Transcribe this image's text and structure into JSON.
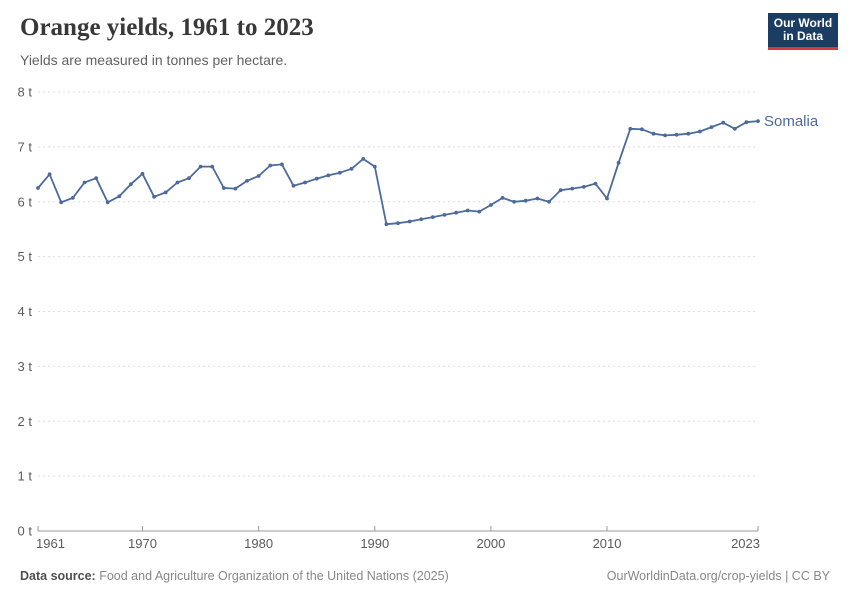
{
  "header": {
    "title": "Orange yields, 1961 to 2023",
    "subtitle": "Yields are measured in tonnes per hectare.",
    "logo": {
      "line1": "Our World",
      "line2": "in Data"
    }
  },
  "chart_data": {
    "type": "line",
    "title": "Orange yields, 1961 to 2023",
    "ylabel": "tonnes per hectare",
    "xlabel": "",
    "xlim": [
      1961,
      2023
    ],
    "ylim": [
      0,
      8
    ],
    "grid": "horizontal-dashed",
    "legend_position": "end-of-line-label",
    "x": [
      1961,
      1962,
      1963,
      1964,
      1965,
      1966,
      1967,
      1968,
      1969,
      1970,
      1971,
      1972,
      1973,
      1974,
      1975,
      1976,
      1977,
      1978,
      1979,
      1980,
      1981,
      1982,
      1983,
      1984,
      1985,
      1986,
      1987,
      1988,
      1989,
      1990,
      1991,
      1992,
      1993,
      1994,
      1995,
      1996,
      1997,
      1998,
      1999,
      2000,
      2001,
      2002,
      2003,
      2004,
      2005,
      2006,
      2007,
      2008,
      2009,
      2010,
      2011,
      2012,
      2013,
      2014,
      2015,
      2016,
      2017,
      2018,
      2019,
      2020,
      2021,
      2022,
      2023
    ],
    "series": [
      {
        "name": "Somalia",
        "color": "#4C6A9C",
        "values": [
          6.25,
          6.5,
          5.99,
          6.07,
          6.35,
          6.43,
          5.99,
          6.1,
          6.32,
          6.51,
          6.09,
          6.17,
          6.35,
          6.43,
          6.64,
          6.64,
          6.25,
          6.24,
          6.38,
          6.47,
          6.66,
          6.68,
          6.29,
          6.35,
          6.42,
          6.48,
          6.53,
          6.6,
          6.78,
          6.64,
          5.59,
          5.61,
          5.64,
          5.68,
          5.72,
          5.76,
          5.8,
          5.84,
          5.82,
          5.94,
          6.07,
          6.0,
          6.02,
          6.06,
          6.0,
          6.21,
          6.24,
          6.27,
          6.33,
          6.06,
          6.71,
          7.33,
          7.32,
          7.24,
          7.21,
          7.22,
          7.24,
          7.28,
          7.36,
          7.44,
          7.33,
          7.45,
          7.47
        ]
      }
    ],
    "x_ticks": [
      {
        "value": 1961,
        "label": "1961"
      },
      {
        "value": 1970,
        "label": "1970"
      },
      {
        "value": 1980,
        "label": "1980"
      },
      {
        "value": 1990,
        "label": "1990"
      },
      {
        "value": 2000,
        "label": "2000"
      },
      {
        "value": 2010,
        "label": "2010"
      },
      {
        "value": 2023,
        "label": "2023"
      }
    ],
    "y_ticks": [
      {
        "value": 0,
        "label": "0 t"
      },
      {
        "value": 1,
        "label": "1 t"
      },
      {
        "value": 2,
        "label": "2 t"
      },
      {
        "value": 3,
        "label": "3 t"
      },
      {
        "value": 4,
        "label": "4 t"
      },
      {
        "value": 5,
        "label": "5 t"
      },
      {
        "value": 6,
        "label": "6 t"
      },
      {
        "value": 7,
        "label": "7 t"
      },
      {
        "value": 8,
        "label": "8 t"
      }
    ]
  },
  "footer": {
    "source_label": "Data source:",
    "source_text": "Food and Agriculture Organization of the United Nations (2025)",
    "attribution": "OurWorldinData.org/crop-yields | CC BY"
  },
  "colors": {
    "line": "#4C6A9C",
    "grid": "#dedede",
    "axis": "#9a9a9a",
    "tick_label": "#5b5b5b",
    "title": "#383838",
    "subtitle": "#616161",
    "logo_bg": "#1c3d63",
    "logo_red": "#d7383f"
  }
}
